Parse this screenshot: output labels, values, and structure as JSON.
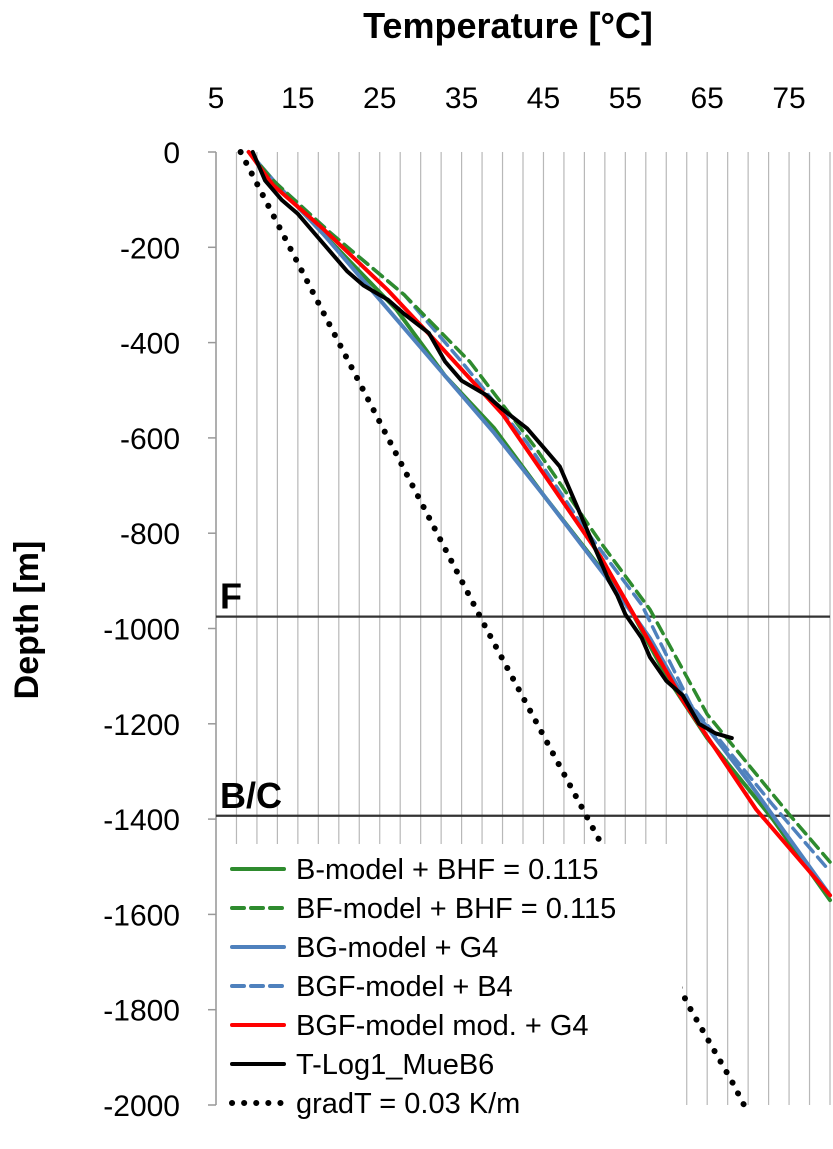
{
  "chart_data": {
    "type": "line",
    "title": "Temperature  [°C]",
    "xlabel": "Temperature  [°C]",
    "ylabel": "Depth [m]",
    "xlim": [
      5,
      80
    ],
    "ylim": [
      -2000,
      0
    ],
    "x_ticks": [
      "5",
      "15",
      "25",
      "35",
      "45",
      "55",
      "65",
      "75"
    ],
    "y_ticks": [
      "0",
      "-200",
      "-400",
      "-600",
      "-800",
      "-1000",
      "-1200",
      "-1400",
      "-1600",
      "-1800",
      "-2000"
    ],
    "grid": "vertical",
    "legend_position": "bottom-left",
    "horizontal_markers": [
      {
        "label": "F",
        "depth": -975
      },
      {
        "label": "B/C",
        "depth": -1393
      }
    ],
    "series": [
      {
        "name": "B-model + BHF = 0.115",
        "color": "#2e8b2e",
        "style": "solid",
        "points": [
          [
            9,
            0
          ],
          [
            12,
            -60
          ],
          [
            18,
            -170
          ],
          [
            27,
            -330
          ],
          [
            33,
            -470
          ],
          [
            39,
            -580
          ],
          [
            45,
            -720
          ],
          [
            55,
            -940
          ],
          [
            60,
            -1100
          ],
          [
            65,
            -1230
          ],
          [
            73,
            -1400
          ],
          [
            80,
            -1570
          ]
        ]
      },
      {
        "name": "BF-model + BHF = 0.115",
        "color": "#2e8b2e",
        "style": "dashed",
        "points": [
          [
            9,
            0
          ],
          [
            12,
            -60
          ],
          [
            19,
            -170
          ],
          [
            28,
            -300
          ],
          [
            36,
            -440
          ],
          [
            44,
            -620
          ],
          [
            52,
            -820
          ],
          [
            58,
            -960
          ],
          [
            65,
            -1180
          ],
          [
            75,
            -1390
          ],
          [
            80,
            -1490
          ]
        ]
      },
      {
        "name": "BG-model + G4",
        "color": "#4f81bd",
        "style": "solid",
        "points": [
          [
            9,
            0
          ],
          [
            12,
            -60
          ],
          [
            18,
            -170
          ],
          [
            26,
            -330
          ],
          [
            33,
            -470
          ],
          [
            39,
            -590
          ],
          [
            45,
            -720
          ],
          [
            53,
            -900
          ],
          [
            58,
            -1020
          ],
          [
            62,
            -1140
          ],
          [
            70,
            -1320
          ],
          [
            80,
            -1560
          ]
        ]
      },
      {
        "name": "BGF-model + B4",
        "color": "#4f81bd",
        "style": "dashed",
        "points": [
          [
            9,
            0
          ],
          [
            12,
            -60
          ],
          [
            19,
            -170
          ],
          [
            28,
            -300
          ],
          [
            35,
            -440
          ],
          [
            43,
            -610
          ],
          [
            50,
            -790
          ],
          [
            57,
            -950
          ],
          [
            63,
            -1160
          ],
          [
            73,
            -1370
          ],
          [
            80,
            -1510
          ]
        ]
      },
      {
        "name": "BGF-model mod. + G4",
        "color": "#ff0000",
        "style": "solid",
        "points": [
          [
            9,
            0
          ],
          [
            12,
            -70
          ],
          [
            18,
            -160
          ],
          [
            26,
            -290
          ],
          [
            32,
            -400
          ],
          [
            40,
            -550
          ],
          [
            46,
            -700
          ],
          [
            52,
            -850
          ],
          [
            57,
            -1000
          ],
          [
            62,
            -1150
          ],
          [
            71,
            -1380
          ],
          [
            80,
            -1560
          ]
        ]
      },
      {
        "name": "T-Log1_MueB6",
        "color": "#000000",
        "style": "solid",
        "points": [
          [
            9.5,
            0
          ],
          [
            10,
            -20
          ],
          [
            11,
            -60
          ],
          [
            13,
            -100
          ],
          [
            15,
            -130
          ],
          [
            17,
            -170
          ],
          [
            19,
            -210
          ],
          [
            21,
            -250
          ],
          [
            23,
            -280
          ],
          [
            26,
            -310
          ],
          [
            28,
            -340
          ],
          [
            31,
            -380
          ],
          [
            32,
            -410
          ],
          [
            33,
            -440
          ],
          [
            35,
            -480
          ],
          [
            38,
            -510
          ],
          [
            40,
            -540
          ],
          [
            43,
            -580
          ],
          [
            45,
            -620
          ],
          [
            47,
            -660
          ],
          [
            48,
            -700
          ],
          [
            49,
            -740
          ],
          [
            50,
            -780
          ],
          [
            51,
            -820
          ],
          [
            52,
            -860
          ],
          [
            53,
            -900
          ],
          [
            54,
            -930
          ],
          [
            55,
            -970
          ],
          [
            57,
            -1020
          ],
          [
            58,
            -1060
          ],
          [
            60,
            -1110
          ],
          [
            62,
            -1140
          ],
          [
            63,
            -1170
          ],
          [
            64,
            -1200
          ],
          [
            66,
            -1220
          ],
          [
            68,
            -1230
          ]
        ]
      },
      {
        "name": "gradT = 0.03 K/m",
        "color": "#000000",
        "style": "dotted",
        "points": [
          [
            8,
            0
          ],
          [
            20,
            -400
          ],
          [
            38,
            -1000
          ],
          [
            52,
            -1450
          ],
          [
            57,
            -1600
          ],
          [
            63,
            -1800
          ],
          [
            68,
            -1950
          ],
          [
            69.5,
            -2000
          ]
        ]
      }
    ]
  }
}
